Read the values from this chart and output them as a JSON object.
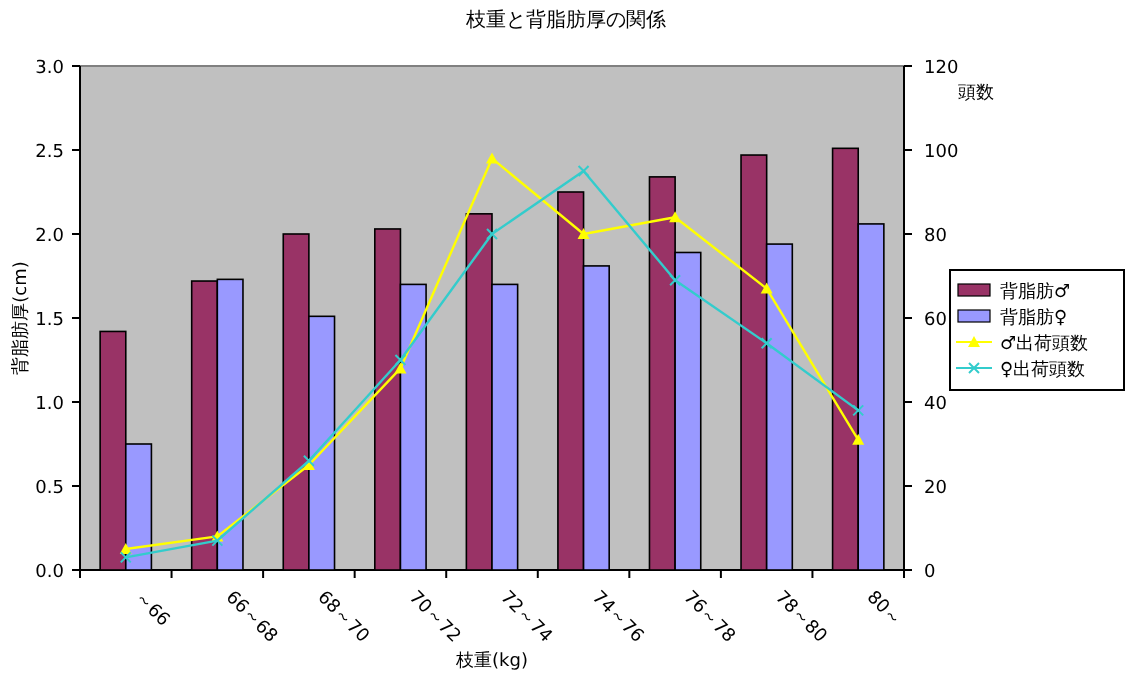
{
  "chart_data": {
    "type": "bar",
    "title": "枝重と背脂肪厚の関係",
    "xlabel": "枝重(kg)",
    "ylabel": "背脂肪厚(cm)",
    "y2label": "頭数",
    "categories": [
      "～66",
      "66～68",
      "68～70",
      "70～72",
      "72～74",
      "74～76",
      "76～78",
      "78～80",
      "80～"
    ],
    "ylim": [
      0,
      3
    ],
    "yticks": [
      {
        "value": 0,
        "label": "0.0"
      },
      {
        "value": 0.5,
        "label": "0.5"
      },
      {
        "value": 1,
        "label": "1.0"
      },
      {
        "value": 1.5,
        "label": "1.5"
      },
      {
        "value": 2,
        "label": "2.0"
      },
      {
        "value": 2.5,
        "label": "2.5"
      },
      {
        "value": 3,
        "label": "3.0"
      }
    ],
    "y2lim": [
      0,
      120
    ],
    "y2ticks": [
      0,
      20,
      40,
      60,
      80,
      100,
      120
    ],
    "grid": false,
    "legend": "right",
    "series": [
      {
        "name": "背脂肪♂",
        "color": "#993366",
        "values": [
          1.42,
          1.72,
          2.0,
          2.03,
          2.12,
          2.25,
          2.34,
          2.47,
          2.51
        ]
      },
      {
        "name": "背脂肪♀",
        "color": "#9999ff",
        "values": [
          0.75,
          1.73,
          1.51,
          1.7,
          1.7,
          1.81,
          1.89,
          1.94,
          2.06
        ]
      },
      {
        "name": "♂出荷頭数",
        "type": "line",
        "axis": "y2",
        "marker": "triangle",
        "color": "#ffff00",
        "values": [
          5,
          8,
          25,
          48,
          98,
          80,
          84,
          67,
          31
        ]
      },
      {
        "name": "♀出荷頭数",
        "type": "line",
        "axis": "y2",
        "marker": "cross",
        "color": "#33cccc",
        "values": [
          3,
          7,
          26,
          50,
          80,
          95,
          69,
          54,
          38
        ]
      }
    ]
  }
}
